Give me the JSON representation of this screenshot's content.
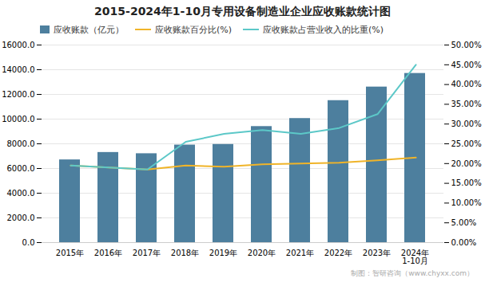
{
  "chart_data": {
    "type": "bar",
    "title": "2015-2024年1-10月专用设备制造业企业应收账款统计图",
    "categories": [
      "2015年",
      "2016年",
      "2017年",
      "2018年",
      "2019年",
      "2020年",
      "2021年",
      "2022年",
      "2023年",
      "2024年\n1-10月"
    ],
    "series": [
      {
        "name": "应收账款（亿元）",
        "type": "bar",
        "color": "#4d7f9e",
        "values": [
          6700,
          7300,
          7200,
          7900,
          7950,
          9400,
          10050,
          11500,
          12600,
          13700
        ]
      },
      {
        "name": "应收账款百分比(%)",
        "type": "line",
        "axis": "y2",
        "color": "#f0b429",
        "values": [
          19.5,
          19.0,
          18.5,
          19.5,
          19.2,
          19.8,
          20.0,
          20.2,
          20.8,
          21.5
        ]
      },
      {
        "name": "应收账款占营业收入的比重(%)",
        "type": "line",
        "axis": "y2",
        "color": "#5cc8c8",
        "values": [
          19.5,
          19.0,
          18.5,
          25.5,
          27.5,
          28.5,
          27.5,
          29.0,
          32.5,
          45.0
        ]
      }
    ],
    "ylim": [
      0,
      16000
    ],
    "yticks": [
      {
        "value": 0,
        "label": "0.0"
      },
      {
        "value": 2000,
        "label": "2000.0"
      },
      {
        "value": 4000,
        "label": "4000.0"
      },
      {
        "value": 6000,
        "label": "6000.0"
      },
      {
        "value": 8000,
        "label": "8000.0"
      },
      {
        "value": 10000,
        "label": "10000.0"
      },
      {
        "value": 12000,
        "label": "12000.0"
      },
      {
        "value": 14000,
        "label": "14000.0"
      },
      {
        "value": 16000,
        "label": "16000.0"
      }
    ],
    "y2lim": [
      0,
      50
    ],
    "y2ticks": [
      {
        "value": 0,
        "label": "0.00%"
      },
      {
        "value": 5,
        "label": "5.00%"
      },
      {
        "value": 10,
        "label": "10.00%"
      },
      {
        "value": 15,
        "label": "15.00%"
      },
      {
        "value": 20,
        "label": "20.00%"
      },
      {
        "value": 25,
        "label": "25.00%"
      },
      {
        "value": 30,
        "label": "30.00%"
      },
      {
        "value": 35,
        "label": "35.00%"
      },
      {
        "value": 40,
        "label": "40.00%"
      },
      {
        "value": 45,
        "label": "45.00%"
      },
      {
        "value": 50,
        "label": "50.00%"
      }
    ],
    "grid": true,
    "legend": "upper left",
    "annotations": [
      "制图：智研咨询（www.chyxx.com）"
    ]
  }
}
